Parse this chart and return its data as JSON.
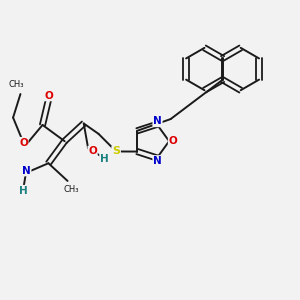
{
  "bg_color": "#f2f2f2",
  "bond_color": "#1a1a1a",
  "atom_colors": {
    "N": "#0000cc",
    "O": "#dd0000",
    "S": "#cccc00",
    "H": "#1a8080"
  }
}
